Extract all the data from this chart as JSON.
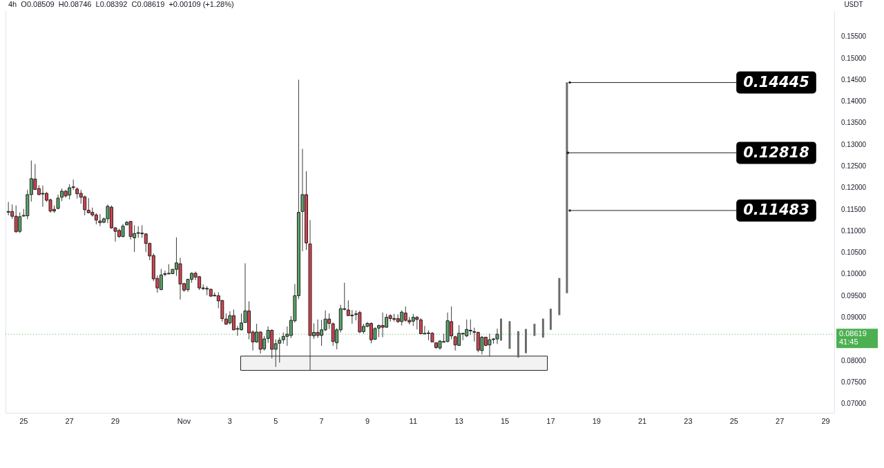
{
  "chart_data": {
    "type": "candlestick",
    "title": "4h  O0.08509  H0.08746  L0.08392  C0.08619  +0.00109 (+1.28%)",
    "ylabel": "USDT",
    "xlim": [
      "--10-24T05:00",
      "--11-29T09:00"
    ],
    "xticks": [
      {
        "value": "--10-25",
        "label": "25"
      },
      {
        "value": "--10-27",
        "label": "27"
      },
      {
        "value": "--10-29",
        "label": "29"
      },
      {
        "value": "--11-01",
        "label": "Nov"
      },
      {
        "value": "--11-03",
        "label": "3"
      },
      {
        "value": "--11-05",
        "label": "5"
      },
      {
        "value": "--11-07",
        "label": "7"
      },
      {
        "value": "--11-09",
        "label": "9"
      },
      {
        "value": "--11-11",
        "label": "11"
      },
      {
        "value": "--11-13",
        "label": "13"
      },
      {
        "value": "--11-15",
        "label": "15"
      },
      {
        "value": "--11-17",
        "label": "17"
      },
      {
        "value": "--11-19",
        "label": "19"
      },
      {
        "value": "--11-21",
        "label": "21"
      },
      {
        "value": "--11-23",
        "label": "23"
      },
      {
        "value": "--11-25",
        "label": "25"
      },
      {
        "value": "--11-27",
        "label": "27"
      },
      {
        "value": "--11-29",
        "label": "29"
      }
    ],
    "ylim": [
      0.068,
      0.161
    ],
    "yticks": [
      {
        "value": 0.07,
        "label": "0.07000"
      },
      {
        "value": 0.075,
        "label": "0.07500"
      },
      {
        "value": 0.08,
        "label": "0.08000"
      },
      {
        "value": 0.09,
        "label": "0.09000"
      },
      {
        "value": 0.095,
        "label": "0.09500"
      },
      {
        "value": 0.1,
        "label": "0.10000"
      },
      {
        "value": 0.105,
        "label": "0.10500"
      },
      {
        "value": 0.11,
        "label": "0.11000"
      },
      {
        "value": 0.115,
        "label": "0.11500"
      },
      {
        "value": 0.12,
        "label": "0.12000"
      },
      {
        "value": 0.125,
        "label": "0.12500"
      },
      {
        "value": 0.13,
        "label": "0.13000"
      },
      {
        "value": 0.135,
        "label": "0.13500"
      },
      {
        "value": 0.14,
        "label": "0.14000"
      },
      {
        "value": 0.145,
        "label": "0.14500"
      },
      {
        "value": 0.15,
        "label": "0.15000"
      },
      {
        "value": 0.155,
        "label": "0.15500"
      }
    ],
    "grid": false,
    "series": [
      {
        "type": "candlestick",
        "x": [
          "--10-24T08:00",
          "--10-24T12:00",
          "--10-24T16:00",
          "--10-24T20:00",
          "--10-25T00:00",
          "--10-25T04:00",
          "--10-25T08:00",
          "--10-25T12:00",
          "--10-25T16:00",
          "--10-25T20:00",
          "--10-26T00:00",
          "--10-26T04:00",
          "--10-26T08:00",
          "--10-26T12:00",
          "--10-26T16:00",
          "--10-26T20:00",
          "--10-27T00:00",
          "--10-27T04:00",
          "--10-27T08:00",
          "--10-27T12:00",
          "--10-27T16:00",
          "--10-27T20:00",
          "--10-28T00:00",
          "--10-28T04:00",
          "--10-28T08:00",
          "--10-28T12:00",
          "--10-28T16:00",
          "--10-28T20:00",
          "--10-29T00:00",
          "--10-29T04:00",
          "--10-29T08:00",
          "--10-29T12:00",
          "--10-29T16:00",
          "--10-29T20:00",
          "--10-30T00:00",
          "--10-30T04:00",
          "--10-30T08:00",
          "--10-30T12:00",
          "--10-30T16:00",
          "--10-30T20:00",
          "--10-31T00:00",
          "--10-31T04:00",
          "--10-31T08:00",
          "--10-31T12:00",
          "--10-31T16:00",
          "--10-31T20:00",
          "--11-01T00:00",
          "--11-01T04:00",
          "--11-01T08:00",
          "--11-01T12:00",
          "--11-01T16:00",
          "--11-01T20:00",
          "--11-02T00:00",
          "--11-02T04:00",
          "--11-02T08:00",
          "--11-02T12:00",
          "--11-02T16:00",
          "--11-02T20:00",
          "--11-03T00:00",
          "--11-03T04:00",
          "--11-03T08:00",
          "--11-03T12:00",
          "--11-03T16:00",
          "--11-03T20:00",
          "--11-04T00:00",
          "--11-04T04:00",
          "--11-04T08:00",
          "--11-04T12:00",
          "--11-04T16:00",
          "--11-04T20:00",
          "--11-05T00:00",
          "--11-05T04:00",
          "--11-05T08:00",
          "--11-05T12:00",
          "--11-05T16:00",
          "--11-05T20:00",
          "--11-06T00:00",
          "--11-06T04:00",
          "--11-06T08:00",
          "--11-06T12:00",
          "--11-06T16:00",
          "--11-06T20:00",
          "--11-07T00:00",
          "--11-07T04:00",
          "--11-07T08:00",
          "--11-07T12:00",
          "--11-07T16:00",
          "--11-07T20:00",
          "--11-08T00:00",
          "--11-08T04:00",
          "--11-08T08:00",
          "--11-08T12:00",
          "--11-08T16:00",
          "--11-08T20:00",
          "--11-09T00:00",
          "--11-09T04:00",
          "--11-09T08:00",
          "--11-09T12:00",
          "--11-09T16:00",
          "--11-09T20:00",
          "--11-10T00:00",
          "--11-10T04:00",
          "--11-10T08:00",
          "--11-10T12:00",
          "--11-10T16:00",
          "--11-10T20:00",
          "--11-11T00:00",
          "--11-11T04:00",
          "--11-11T08:00",
          "--11-11T12:00",
          "--11-11T16:00",
          "--11-11T20:00",
          "--11-12T00:00",
          "--11-12T04:00",
          "--11-12T08:00",
          "--11-12T12:00",
          "--11-12T16:00",
          "--11-12T20:00",
          "--11-13T00:00",
          "--11-13T04:00",
          "--11-13T08:00",
          "--11-13T12:00",
          "--11-13T16:00",
          "--11-13T20:00",
          "--11-14T00:00",
          "--11-14T04:00",
          "--11-14T08:00",
          "--11-14T12:00",
          "--11-14T16:00"
        ],
        "ohlc": [
          [
            0.1146,
            0.1168,
            0.1137,
            0.1145
          ],
          [
            0.1146,
            0.1162,
            0.1129,
            0.1135
          ],
          [
            0.1135,
            0.116,
            0.1097,
            0.1099
          ],
          [
            0.11,
            0.1144,
            0.1096,
            0.1134
          ],
          [
            0.1136,
            0.1152,
            0.1134,
            0.1137
          ],
          [
            0.1136,
            0.1196,
            0.1128,
            0.1185
          ],
          [
            0.1185,
            0.1264,
            0.1169,
            0.1222
          ],
          [
            0.1221,
            0.1256,
            0.1196,
            0.1197
          ],
          [
            0.1199,
            0.1207,
            0.1184,
            0.1185
          ],
          [
            0.1187,
            0.1206,
            0.1157,
            0.1188
          ],
          [
            0.1188,
            0.1191,
            0.1168,
            0.1172
          ],
          [
            0.1173,
            0.1176,
            0.1143,
            0.1147
          ],
          [
            0.1151,
            0.116,
            0.1143,
            0.1147
          ],
          [
            0.1153,
            0.1185,
            0.1151,
            0.1177
          ],
          [
            0.1179,
            0.1199,
            0.117,
            0.1193
          ],
          [
            0.1193,
            0.1196,
            0.1178,
            0.1182
          ],
          [
            0.1184,
            0.1209,
            0.1174,
            0.1201
          ],
          [
            0.1203,
            0.122,
            0.1196,
            0.1202
          ],
          [
            0.1198,
            0.1202,
            0.1176,
            0.1187
          ],
          [
            0.1188,
            0.1196,
            0.1164,
            0.1179
          ],
          [
            0.118,
            0.1183,
            0.1137,
            0.115
          ],
          [
            0.1149,
            0.1177,
            0.1142,
            0.1143
          ],
          [
            0.1144,
            0.1155,
            0.1134,
            0.1138
          ],
          [
            0.1138,
            0.1142,
            0.1116,
            0.1126
          ],
          [
            0.1124,
            0.114,
            0.1112,
            0.112
          ],
          [
            0.1121,
            0.1132,
            0.1119,
            0.1129
          ],
          [
            0.1129,
            0.1162,
            0.1119,
            0.1158
          ],
          [
            0.1156,
            0.116,
            0.1106,
            0.1108
          ],
          [
            0.1108,
            0.111,
            0.1076,
            0.11
          ],
          [
            0.1102,
            0.1106,
            0.1085,
            0.1088
          ],
          [
            0.1088,
            0.1117,
            0.1086,
            0.1112
          ],
          [
            0.1115,
            0.1124,
            0.1114,
            0.1121
          ],
          [
            0.1123,
            0.1124,
            0.1081,
            0.1088
          ],
          [
            0.1085,
            0.1114,
            0.1052,
            0.1095
          ],
          [
            0.1097,
            0.1112,
            0.1085,
            0.1096
          ],
          [
            0.1096,
            0.1114,
            0.1085,
            0.1095
          ],
          [
            0.1094,
            0.1096,
            0.1052,
            0.1072
          ],
          [
            0.1072,
            0.1074,
            0.1033,
            0.1043
          ],
          [
            0.1044,
            0.1049,
            0.0985,
            0.099
          ],
          [
            0.0991,
            0.0998,
            0.0958,
            0.0969
          ],
          [
            0.0965,
            0.1013,
            0.0964,
            0.0999
          ],
          [
            0.1001,
            0.1009,
            0.0996,
            0.1002
          ],
          [
            0.1003,
            0.1024,
            0.1001,
            0.1003
          ],
          [
            0.1002,
            0.1013,
            0.1001,
            0.1012
          ],
          [
            0.1012,
            0.1086,
            0.0997,
            0.1027
          ],
          [
            0.1025,
            0.1039,
            0.0942,
            0.0978
          ],
          [
            0.0979,
            0.0981,
            0.096,
            0.0964
          ],
          [
            0.0965,
            0.099,
            0.096,
            0.0989
          ],
          [
            0.0989,
            0.1005,
            0.0981,
            0.1003
          ],
          [
            0.1003,
            0.1007,
            0.0987,
            0.0994
          ],
          [
            0.0995,
            0.0997,
            0.0964,
            0.0969
          ],
          [
            0.0969,
            0.0977,
            0.0964,
            0.0968
          ],
          [
            0.0968,
            0.0973,
            0.0952,
            0.0968
          ],
          [
            0.0966,
            0.0967,
            0.0948,
            0.095
          ],
          [
            0.0952,
            0.0959,
            0.095,
            0.0951
          ],
          [
            0.0951,
            0.0959,
            0.0922,
            0.0939
          ],
          [
            0.094,
            0.0941,
            0.0891,
            0.0898
          ],
          [
            0.0897,
            0.091,
            0.0884,
            0.0885
          ],
          [
            0.0888,
            0.0915,
            0.0884,
            0.0905
          ],
          [
            0.0905,
            0.0919,
            0.0871,
            0.0872
          ],
          [
            0.0875,
            0.0881,
            0.0858,
            0.0875
          ],
          [
            0.0872,
            0.091,
            0.0871,
            0.0888
          ],
          [
            0.0889,
            0.1026,
            0.0888,
            0.0916
          ],
          [
            0.0916,
            0.0938,
            0.085,
            0.0865
          ],
          [
            0.0867,
            0.0871,
            0.0824,
            0.0844
          ],
          [
            0.0844,
            0.0886,
            0.0842,
            0.0867
          ],
          [
            0.0867,
            0.0868,
            0.0817,
            0.0827
          ],
          [
            0.0828,
            0.0858,
            0.0824,
            0.0851
          ],
          [
            0.0852,
            0.088,
            0.0842,
            0.0871
          ],
          [
            0.0871,
            0.0873,
            0.0806,
            0.0827
          ],
          [
            0.0827,
            0.085,
            0.0786,
            0.084
          ],
          [
            0.0841,
            0.0855,
            0.0796,
            0.0848
          ],
          [
            0.0849,
            0.0866,
            0.084,
            0.0857
          ],
          [
            0.0857,
            0.088,
            0.0835,
            0.0862
          ],
          [
            0.0859,
            0.0904,
            0.0853,
            0.0894
          ],
          [
            0.0893,
            0.0978,
            0.0889,
            0.0951
          ],
          [
            0.0951,
            0.1451,
            0.0943,
            0.1144
          ],
          [
            0.1146,
            0.1291,
            0.1054,
            0.1185
          ],
          [
            0.1185,
            0.1239,
            0.1057,
            0.1073
          ],
          [
            0.1071,
            0.1126,
            0.0779,
            0.0859
          ],
          [
            0.0858,
            0.0887,
            0.0851,
            0.0866
          ],
          [
            0.0866,
            0.0896,
            0.0853,
            0.0859
          ],
          [
            0.0859,
            0.0895,
            0.0835,
            0.0872
          ],
          [
            0.0872,
            0.0917,
            0.0869,
            0.0897
          ],
          [
            0.0897,
            0.091,
            0.0874,
            0.0887
          ],
          [
            0.0886,
            0.0889,
            0.0835,
            0.0845
          ],
          [
            0.0842,
            0.0876,
            0.0827,
            0.0872
          ],
          [
            0.0872,
            0.093,
            0.0866,
            0.0921
          ],
          [
            0.0921,
            0.0981,
            0.0917,
            0.0921
          ],
          [
            0.0918,
            0.094,
            0.0904,
            0.0905
          ],
          [
            0.0906,
            0.0918,
            0.0886,
            0.0906
          ],
          [
            0.0909,
            0.0917,
            0.0894,
            0.0909
          ],
          [
            0.0912,
            0.0916,
            0.0865,
            0.0867
          ],
          [
            0.0868,
            0.0886,
            0.0863,
            0.088
          ],
          [
            0.088,
            0.089,
            0.0878,
            0.0887
          ],
          [
            0.0887,
            0.0889,
            0.0841,
            0.0849
          ],
          [
            0.085,
            0.0878,
            0.0849,
            0.0875
          ],
          [
            0.0876,
            0.0884,
            0.0855,
            0.0882
          ],
          [
            0.0882,
            0.0912,
            0.0855,
            0.0878
          ],
          [
            0.0878,
            0.0909,
            0.0877,
            0.0901
          ],
          [
            0.0905,
            0.0908,
            0.0891,
            0.0898
          ],
          [
            0.0898,
            0.0909,
            0.0891,
            0.0897
          ],
          [
            0.0898,
            0.0908,
            0.0888,
            0.0891
          ],
          [
            0.0891,
            0.0917,
            0.0882,
            0.0913
          ],
          [
            0.0911,
            0.0926,
            0.0891,
            0.0894
          ],
          [
            0.0894,
            0.0902,
            0.0884,
            0.089
          ],
          [
            0.0892,
            0.0909,
            0.0881,
            0.0901
          ],
          [
            0.0901,
            0.0904,
            0.0873,
            0.0896
          ],
          [
            0.0895,
            0.0899,
            0.0862,
            0.0863
          ],
          [
            0.0864,
            0.0881,
            0.0863,
            0.0864
          ],
          [
            0.0865,
            0.0871,
            0.0848,
            0.0865
          ],
          [
            0.0864,
            0.0867,
            0.0843,
            0.0844
          ],
          [
            0.0842,
            0.0843,
            0.0828,
            0.0831
          ],
          [
            0.083,
            0.0848,
            0.0826,
            0.0846
          ],
          [
            0.0844,
            0.0863,
            0.0843,
            0.0845
          ],
          [
            0.0845,
            0.0912,
            0.0843,
            0.0893
          ],
          [
            0.0891,
            0.0926,
            0.085,
            0.0858
          ],
          [
            0.0856,
            0.0858,
            0.0824,
            0.0837
          ],
          [
            0.0836,
            0.0883,
            0.0835,
            0.0864
          ],
          [
            0.0864,
            0.0865,
            0.0848,
            0.0864
          ],
          [
            0.0858,
            0.0896,
            0.0855,
            0.0873
          ],
          [
            0.0871,
            0.0896,
            0.086,
            0.087
          ],
          [
            0.0868,
            0.0877,
            0.0845,
            0.0867
          ],
          [
            0.0866,
            0.0868,
            0.082,
            0.0825
          ],
          [
            0.0824,
            0.0858,
            0.0815,
            0.0855
          ],
          [
            0.0855,
            0.0855,
            0.0834,
            0.0836
          ],
          [
            0.0837,
            0.0863,
            0.081,
            0.0849
          ],
          [
            0.085,
            0.0853,
            0.084,
            0.0851
          ],
          [
            0.08509,
            0.08746,
            0.08392,
            0.08619
          ]
        ],
        "colors": [
          "#d6424f",
          "#d6424f",
          "#d6424f",
          "#5aa469",
          "#5aa469",
          "#5aa469",
          "#5aa469",
          "#d6424f",
          "#d6424f",
          "#5aa469",
          "#d6424f",
          "#d6424f",
          "#d6424f",
          "#5aa469",
          "#5aa469",
          "#d6424f",
          "#5aa469",
          "#d6424f",
          "#d6424f",
          "#d6424f",
          "#d6424f",
          "#d6424f",
          "#d6424f",
          "#d6424f",
          "#d6424f",
          "#5aa469",
          "#5aa469",
          "#d6424f",
          "#d6424f",
          "#d6424f",
          "#5aa469",
          "#5aa469",
          "#d6424f",
          "#5aa469",
          "#d6424f",
          "#d6424f",
          "#d6424f",
          "#d6424f",
          "#d6424f",
          "#d6424f",
          "#5aa469",
          "#5aa469",
          "#5aa469",
          "#5aa469",
          "#5aa469",
          "#d6424f",
          "#d6424f",
          "#5aa469",
          "#5aa469",
          "#d6424f",
          "#d6424f",
          "#d6424f",
          "#5aa469",
          "#d6424f",
          "#d6424f",
          "#d6424f",
          "#d6424f",
          "#d6424f",
          "#5aa469",
          "#d6424f",
          "#5aa469",
          "#5aa469",
          "#5aa469",
          "#d6424f",
          "#d6424f",
          "#5aa469",
          "#d6424f",
          "#5aa469",
          "#5aa469",
          "#d6424f",
          "#5aa469",
          "#5aa469",
          "#5aa469",
          "#5aa469",
          "#5aa469",
          "#5aa469",
          "#5aa469",
          "#5aa469",
          "#d6424f",
          "#d6424f",
          "#5aa469",
          "#d6424f",
          "#5aa469",
          "#5aa469",
          "#d6424f",
          "#d6424f",
          "#5aa469",
          "#5aa469",
          "#5aa469",
          "#d6424f",
          "#5aa469",
          "#5aa469",
          "#d6424f",
          "#5aa469",
          "#5aa469",
          "#d6424f",
          "#5aa469",
          "#5aa469",
          "#d6424f",
          "#5aa469",
          "#d6424f",
          "#d6424f",
          "#d6424f",
          "#5aa469",
          "#d6424f",
          "#d6424f",
          "#5aa469",
          "#d6424f",
          "#d6424f",
          "#5aa469",
          "#5aa469",
          "#d6424f",
          "#d6424f",
          "#5aa469",
          "#5aa469",
          "#5aa469",
          "#d6424f",
          "#d6424f",
          "#5aa469",
          "#5aa469",
          "#5aa469",
          "#d6424f",
          "#d6424f",
          "#d6424f",
          "#5aa469",
          "#d6424f",
          "#5aa469",
          "#5aa469",
          "#5aa469"
        ]
      },
      {
        "type": "bar",
        "color": "#6b6b6b",
        "x": [
          "--11-14T20:00",
          "--11-15T05:00",
          "--11-15T14:00",
          "--11-15T22:00",
          "--11-16T07:00",
          "--11-16T16:00",
          "--11-17T00:00",
          "--11-17T09:00",
          "--11-17T17:00"
        ],
        "base": [
          0.0847,
          0.0828,
          0.0808,
          0.0818,
          0.0858,
          0.0854,
          0.0872,
          0.0906,
          0.0957
        ],
        "values": [
          0.0051,
          0.0064,
          0.0061,
          0.0056,
          0.0028,
          0.0044,
          0.0049,
          0.0086,
          0.0488
        ]
      }
    ],
    "annotations": [
      {
        "text": "0.14445",
        "x": "--11-17T20:00",
        "y": 0.14445
      },
      {
        "text": "0.12818",
        "x": "--11-17T18:00",
        "y": 0.12818
      },
      {
        "text": "0.11483",
        "x": "--11-17T20:00",
        "y": 0.11483
      }
    ],
    "ref_lines": [
      {
        "axis": "y",
        "value": 0.08619,
        "label": "0.08619 41:45",
        "color": "#4caf50",
        "line_style": "dotted"
      }
    ],
    "bands": [
      {
        "axis": "y",
        "from": 0.0779,
        "to": 0.0812,
        "color": "#222222"
      }
    ]
  }
}
